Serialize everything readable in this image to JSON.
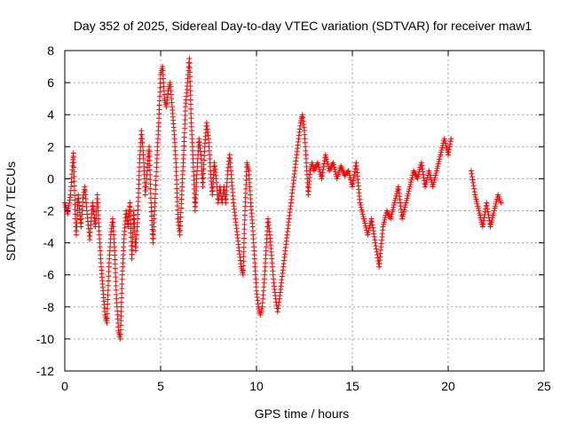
{
  "chart_data": {
    "type": "scatter",
    "title": "Day 352 of 2025, Sidereal Day-to-day VTEC variation (SDTVAR) for receiver maw1",
    "xlabel": "GPS time / hours",
    "ylabel": "SDTVAR / TECUs",
    "xlim": [
      0,
      25
    ],
    "ylim": [
      -12,
      8
    ],
    "xticks": [
      0,
      5,
      10,
      15,
      20,
      25
    ],
    "yticks": [
      -12,
      -10,
      -8,
      -6,
      -4,
      -2,
      0,
      2,
      4,
      6,
      8
    ],
    "grid": true,
    "marker": "plus",
    "color": "#ff0000",
    "series": [
      {
        "name": "SDTVAR",
        "trace": [
          [
            0.0,
            -1.5
          ],
          [
            0.15,
            -2.2
          ],
          [
            0.3,
            -1.0
          ],
          [
            0.4,
            0.8
          ],
          [
            0.45,
            1.6
          ],
          [
            0.55,
            -2.5
          ],
          [
            0.6,
            -3.5
          ],
          [
            0.7,
            -1.0
          ],
          [
            0.85,
            -3.0
          ],
          [
            0.95,
            -1.2
          ],
          [
            1.05,
            -0.5
          ],
          [
            1.15,
            -2.0
          ],
          [
            1.3,
            -3.8
          ],
          [
            1.45,
            -1.5
          ],
          [
            1.6,
            -3.0
          ],
          [
            1.7,
            -1.0
          ],
          [
            1.8,
            -3.5
          ],
          [
            1.9,
            -5.5
          ],
          [
            2.0,
            -7.0
          ],
          [
            2.1,
            -8.5
          ],
          [
            2.2,
            -9.0
          ],
          [
            2.3,
            -5.5
          ],
          [
            2.4,
            -3.5
          ],
          [
            2.5,
            -2.5
          ],
          [
            2.6,
            -4.5
          ],
          [
            2.7,
            -7.5
          ],
          [
            2.8,
            -9.5
          ],
          [
            2.9,
            -10.0
          ],
          [
            3.0,
            -6.0
          ],
          [
            3.1,
            -3.5
          ],
          [
            3.2,
            -2.0
          ],
          [
            3.3,
            -3.0
          ],
          [
            3.4,
            -1.5
          ],
          [
            3.5,
            -5.0
          ],
          [
            3.6,
            -2.0
          ],
          [
            3.7,
            -4.5
          ],
          [
            3.8,
            -2.5
          ],
          [
            3.9,
            1.0
          ],
          [
            4.0,
            3.0
          ],
          [
            4.1,
            1.5
          ],
          [
            4.2,
            -1.0
          ],
          [
            4.3,
            0.5
          ],
          [
            4.4,
            2.0
          ],
          [
            4.5,
            -1.5
          ],
          [
            4.6,
            -4.0
          ],
          [
            4.7,
            -1.5
          ],
          [
            4.8,
            1.0
          ],
          [
            4.9,
            3.5
          ],
          [
            5.0,
            6.5
          ],
          [
            5.1,
            7.0
          ],
          [
            5.2,
            5.0
          ],
          [
            5.3,
            4.5
          ],
          [
            5.4,
            5.5
          ],
          [
            5.5,
            6.0
          ],
          [
            5.6,
            4.5
          ],
          [
            5.7,
            3.0
          ],
          [
            5.8,
            1.0
          ],
          [
            5.9,
            -2.5
          ],
          [
            6.0,
            -3.5
          ],
          [
            6.1,
            -1.0
          ],
          [
            6.2,
            1.5
          ],
          [
            6.3,
            4.5
          ],
          [
            6.4,
            6.0
          ],
          [
            6.5,
            7.5
          ],
          [
            6.6,
            3.5
          ],
          [
            6.7,
            1.0
          ],
          [
            6.8,
            -2.0
          ],
          [
            6.9,
            0.5
          ],
          [
            7.0,
            2.5
          ],
          [
            7.1,
            1.5
          ],
          [
            7.2,
            -0.5
          ],
          [
            7.3,
            2.0
          ],
          [
            7.4,
            3.5
          ],
          [
            7.5,
            2.5
          ],
          [
            7.6,
            0.5
          ],
          [
            7.7,
            -1.0
          ],
          [
            7.8,
            1.0
          ],
          [
            7.9,
            0.0
          ],
          [
            8.0,
            -1.5
          ],
          [
            8.1,
            -0.5
          ],
          [
            8.2,
            -1.5
          ],
          [
            8.3,
            -0.5
          ],
          [
            8.4,
            -1.5
          ],
          [
            8.5,
            0.5
          ],
          [
            8.6,
            1.5
          ],
          [
            8.7,
            0.0
          ],
          [
            8.8,
            -1.5
          ],
          [
            8.9,
            -2.5
          ],
          [
            9.0,
            -3.5
          ],
          [
            9.1,
            -4.5
          ],
          [
            9.2,
            -5.5
          ],
          [
            9.3,
            -6.0
          ],
          [
            9.4,
            -2.0
          ],
          [
            9.5,
            1.0
          ],
          [
            9.6,
            0.5
          ],
          [
            9.7,
            -1.5
          ],
          [
            9.8,
            -3.0
          ],
          [
            9.9,
            -5.0
          ],
          [
            10.0,
            -7.0
          ],
          [
            10.1,
            -8.0
          ],
          [
            10.2,
            -8.5
          ],
          [
            10.3,
            -8.0
          ],
          [
            10.4,
            -6.5
          ],
          [
            10.5,
            -4.5
          ],
          [
            10.6,
            -2.5
          ],
          [
            10.7,
            -3.5
          ],
          [
            10.8,
            -5.0
          ],
          [
            10.9,
            -6.5
          ],
          [
            11.0,
            -7.5
          ],
          [
            11.1,
            -8.3
          ],
          [
            11.2,
            -7.5
          ],
          [
            11.3,
            -6.5
          ],
          [
            11.4,
            -5.5
          ],
          [
            11.5,
            -4.5
          ],
          [
            11.6,
            -3.5
          ],
          [
            11.7,
            -2.5
          ],
          [
            11.8,
            -1.5
          ],
          [
            11.9,
            -0.5
          ],
          [
            12.0,
            0.5
          ],
          [
            12.1,
            1.5
          ],
          [
            12.2,
            2.5
          ],
          [
            12.3,
            3.5
          ],
          [
            12.4,
            4.0
          ],
          [
            12.5,
            3.0
          ],
          [
            12.6,
            1.0
          ],
          [
            12.7,
            -1.0
          ],
          [
            12.8,
            0.5
          ],
          [
            12.9,
            1.0
          ],
          [
            13.0,
            0.5
          ],
          [
            13.2,
            1.0
          ],
          [
            13.4,
            0.0
          ],
          [
            13.6,
            1.5
          ],
          [
            13.8,
            0.5
          ],
          [
            14.0,
            1.0
          ],
          [
            14.2,
            0.0
          ],
          [
            14.4,
            0.8
          ],
          [
            14.6,
            0.2
          ],
          [
            14.8,
            0.5
          ],
          [
            15.0,
            -0.5
          ],
          [
            15.2,
            1.0
          ],
          [
            15.4,
            -1.5
          ],
          [
            15.6,
            -2.5
          ],
          [
            15.8,
            -3.5
          ],
          [
            16.0,
            -2.5
          ],
          [
            16.2,
            -4.0
          ],
          [
            16.4,
            -5.5
          ],
          [
            16.6,
            -3.0
          ],
          [
            16.8,
            -2.0
          ],
          [
            17.0,
            -2.5
          ],
          [
            17.2,
            -1.5
          ],
          [
            17.4,
            -0.5
          ],
          [
            17.6,
            -2.5
          ],
          [
            17.8,
            -1.5
          ],
          [
            18.0,
            -0.5
          ],
          [
            18.2,
            0.5
          ],
          [
            18.4,
            0.0
          ],
          [
            18.6,
            1.0
          ],
          [
            18.8,
            -0.5
          ],
          [
            19.0,
            0.5
          ],
          [
            19.2,
            -0.5
          ],
          [
            19.4,
            0.5
          ],
          [
            19.6,
            1.5
          ],
          [
            19.8,
            2.5
          ],
          [
            20.0,
            1.5
          ],
          [
            20.15,
            2.5
          ],
          [
            21.2,
            0.5
          ],
          [
            21.4,
            -1.0
          ],
          [
            21.6,
            -2.0
          ],
          [
            21.8,
            -3.0
          ],
          [
            22.0,
            -1.5
          ],
          [
            22.2,
            -3.0
          ],
          [
            22.4,
            -2.0
          ],
          [
            22.6,
            -1.0
          ],
          [
            22.75,
            -1.5
          ]
        ]
      }
    ]
  }
}
